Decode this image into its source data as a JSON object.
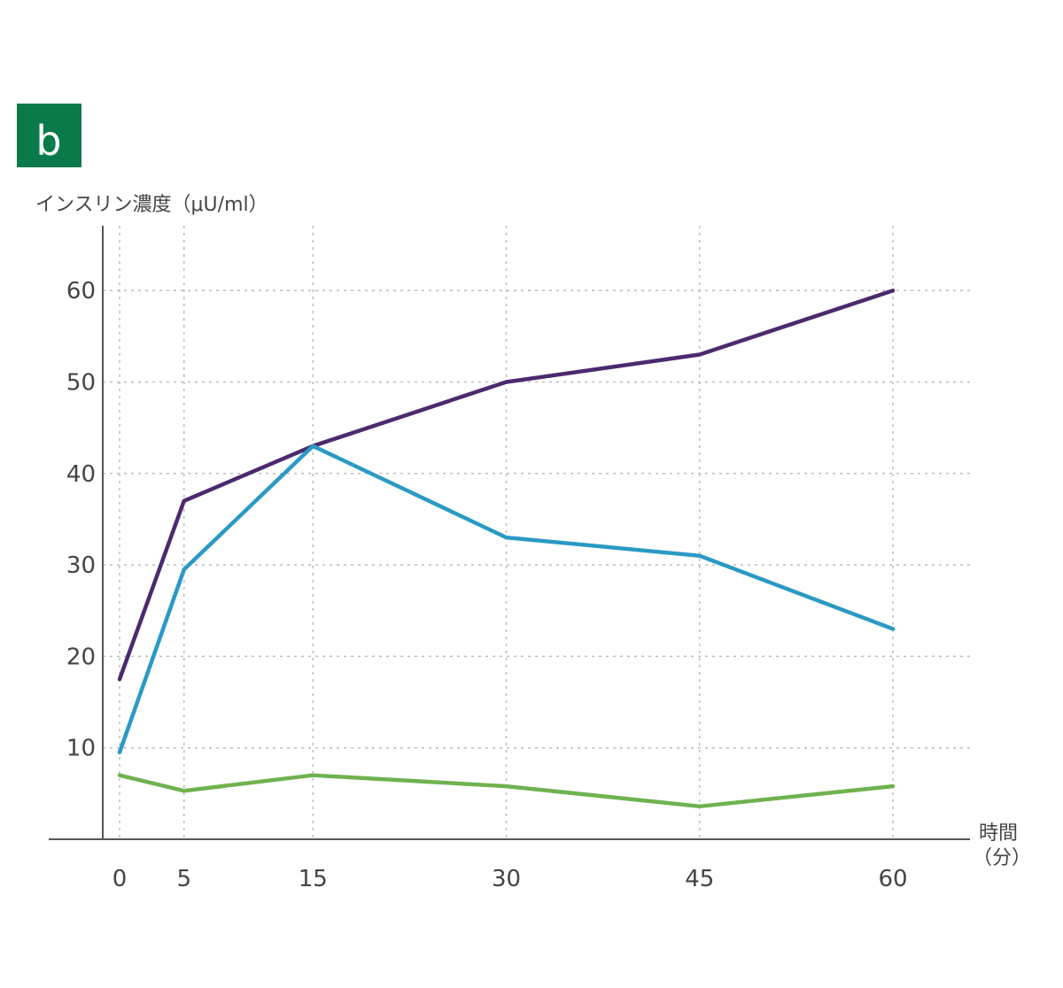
{
  "panel_label": "b",
  "colors": {
    "badge": "#0a7a4a",
    "axis": "#555555",
    "grid": "#bdbdbd",
    "text": "#444444"
  },
  "chart_data": {
    "type": "line",
    "title": "",
    "ylabel": "インスリン濃度（μU/ml）",
    "xlabel": "時間（分）",
    "x": [
      0,
      5,
      15,
      30,
      45,
      60
    ],
    "x_ticks": [
      "0",
      "5",
      "15",
      "30",
      "45",
      "60"
    ],
    "y_ticks": [
      "10",
      "20",
      "30",
      "40",
      "50",
      "60"
    ],
    "ylim": [
      0,
      66
    ],
    "xlim": [
      -2,
      66
    ],
    "grid": true,
    "series": [
      {
        "color": "#4b2a6e",
        "values": [
          17.5,
          37,
          43,
          50,
          53,
          60
        ]
      },
      {
        "color": "#2a9ac4",
        "values": [
          9.5,
          29.5,
          43,
          33,
          31,
          23
        ]
      },
      {
        "color": "#6fb24f",
        "values": [
          7,
          5.3,
          7,
          5.8,
          3.6,
          5.8
        ]
      }
    ]
  }
}
